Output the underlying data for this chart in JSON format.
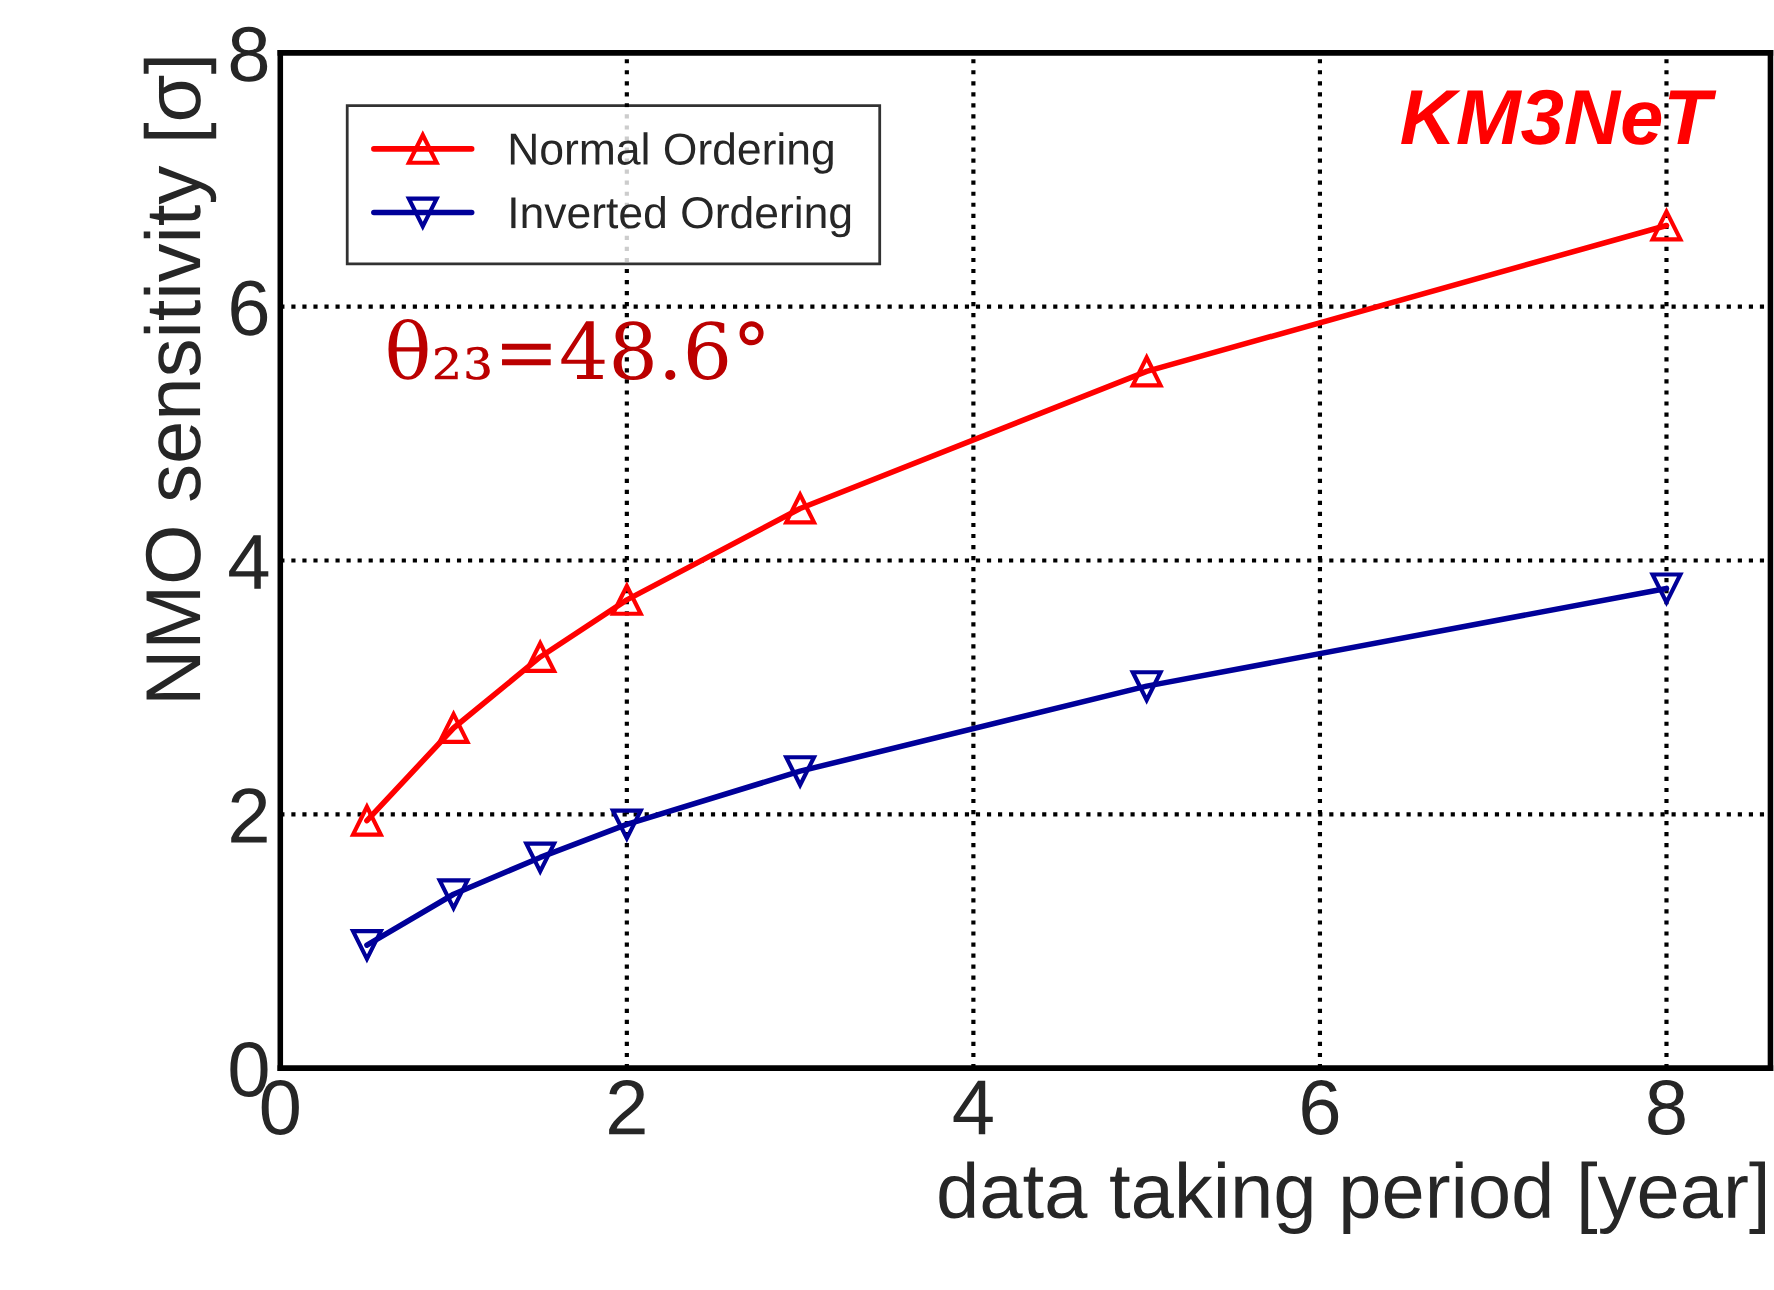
{
  "chart_data": {
    "type": "line",
    "xlabel": "data taking period [year]",
    "ylabel": "NMO sensitivity [σ]",
    "x": [
      0.5,
      1,
      1.5,
      2,
      3,
      5,
      8
    ],
    "series": [
      {
        "name": "Normal Ordering",
        "color": "#ff0000",
        "values": [
          1.95,
          2.68,
          3.24,
          3.69,
          4.41,
          5.49,
          6.64
        ]
      },
      {
        "name": "Inverted Ordering",
        "color": "#000099",
        "values": [
          0.97,
          1.37,
          1.66,
          1.92,
          2.34,
          3.01,
          3.78
        ]
      }
    ],
    "xlim": [
      0,
      8.6
    ],
    "ylim": [
      0,
      8
    ],
    "xticks": [
      0,
      2,
      4,
      6,
      8
    ],
    "yticks": [
      0,
      2,
      4,
      6,
      8
    ],
    "annotations": [
      "KM3NeT",
      "θ₂₃=48.6°"
    ],
    "grid": true,
    "legend": "top left",
    "marker": "triangle",
    "line_style": "solid"
  }
}
